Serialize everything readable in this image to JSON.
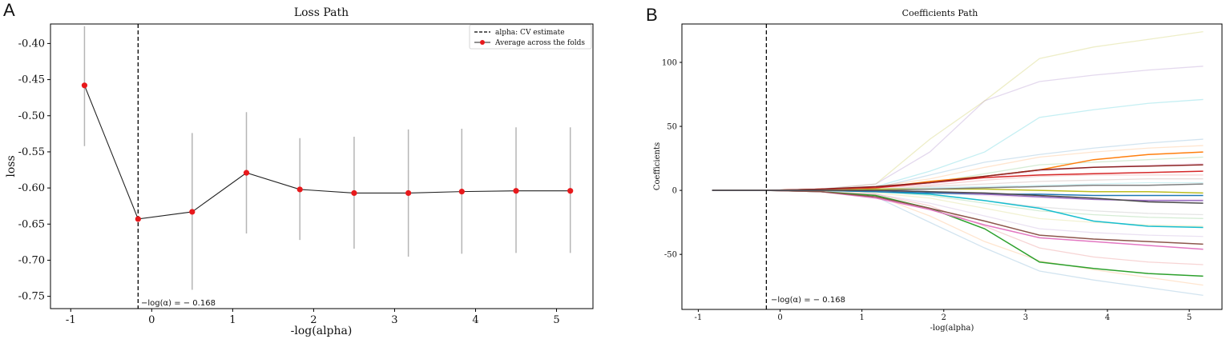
{
  "panels": [
    {
      "letter": "A"
    },
    {
      "letter": "B"
    }
  ],
  "chart_data": [
    {
      "type": "line",
      "title": "Loss Path",
      "xlabel": "-log(alpha)",
      "ylabel": "loss",
      "xlim": [
        -1.25,
        5.45
      ],
      "ylim": [
        -0.767,
        -0.373
      ],
      "xticks": [
        -1,
        0,
        1,
        2,
        3,
        4,
        5
      ],
      "xtick_labels": [
        "-1",
        "0",
        "1",
        "2",
        "3",
        "4",
        "5"
      ],
      "yticks": [
        -0.75,
        -0.7,
        -0.65,
        -0.6,
        -0.55,
        -0.5,
        -0.45,
        -0.4
      ],
      "ytick_labels": [
        "-0.75",
        "-0.70",
        "-0.65",
        "-0.60",
        "-0.55",
        "-0.50",
        "-0.45",
        "-0.40"
      ],
      "cv_estimate_x": -0.168,
      "annotation": "−log(α) = − 0.168",
      "legend": {
        "placement": "top-right",
        "entries": [
          "alpha: CV estimate",
          "Average across the folds"
        ]
      },
      "series": [
        {
          "name": "Average across the folds",
          "color": "#e8191c",
          "x": [
            -0.83,
            -0.168,
            0.5,
            1.17,
            1.83,
            2.5,
            3.17,
            3.83,
            4.5,
            5.17
          ],
          "y": [
            -0.458,
            -0.643,
            -0.633,
            -0.579,
            -0.602,
            -0.607,
            -0.607,
            -0.605,
            -0.604,
            -0.604
          ],
          "err_low": [
            -0.542,
            -0.643,
            -0.741,
            -0.663,
            -0.672,
            -0.684,
            -0.695,
            -0.691,
            -0.69,
            -0.69
          ],
          "err_high": [
            -0.376,
            -0.643,
            -0.524,
            -0.495,
            -0.531,
            -0.529,
            -0.519,
            -0.518,
            -0.516,
            -0.516
          ]
        }
      ]
    },
    {
      "type": "line",
      "title": "Coefficients Path",
      "xlabel": "-log(alpha)",
      "ylabel": "Coefficients",
      "xlim": [
        -1.2,
        5.4
      ],
      "ylim": [
        -93,
        130
      ],
      "xticks": [
        -1,
        0,
        1,
        2,
        3,
        4,
        5
      ],
      "xtick_labels": [
        "-1",
        "0",
        "1",
        "2",
        "3",
        "4",
        "5"
      ],
      "yticks": [
        -50,
        0,
        50,
        100
      ],
      "ytick_labels": [
        "-50",
        "0",
        "50",
        "100"
      ],
      "cv_estimate_x": -0.168,
      "annotation": "−log(α) = − 0.168",
      "x": [
        -0.83,
        -0.168,
        0.5,
        1.17,
        1.83,
        2.5,
        3.17,
        3.83,
        4.5,
        5.17
      ],
      "series": [
        {
          "color": "#2ca02c",
          "opacity": 1,
          "values": [
            0,
            0,
            -1,
            -4,
            -14,
            -30,
            -56,
            -61,
            -65,
            -67
          ]
        },
        {
          "color": "#e377c2",
          "opacity": 1,
          "values": [
            0,
            0,
            -1,
            -6,
            -15,
            -27,
            -37,
            -40,
            -43,
            -46
          ]
        },
        {
          "color": "#8c564b",
          "opacity": 1,
          "values": [
            0,
            0,
            -1,
            -5,
            -14,
            -24,
            -35,
            -38,
            -40,
            -42
          ]
        },
        {
          "color": "#17becf",
          "opacity": 1,
          "values": [
            0,
            0,
            0,
            -1,
            -3,
            -8,
            -14,
            -24,
            -28,
            -29
          ]
        },
        {
          "color": "#ff7f0e",
          "opacity": 1,
          "values": [
            0,
            0,
            1,
            2,
            7,
            11,
            16,
            24,
            28,
            30
          ]
        },
        {
          "color": "#d62728",
          "opacity": 1,
          "values": [
            0,
            0,
            1,
            2,
            6,
            10,
            12,
            13,
            14,
            15
          ]
        },
        {
          "color": "#8b2020",
          "opacity": 1,
          "values": [
            0,
            0,
            1,
            3,
            6,
            11,
            16,
            18,
            19,
            20
          ]
        },
        {
          "color": "#bcbd22",
          "opacity": 1,
          "values": [
            0,
            0,
            0,
            1,
            1,
            1,
            0,
            -1,
            -1,
            -2
          ]
        },
        {
          "color": "#1f77b4",
          "opacity": 1,
          "values": [
            0,
            0,
            0,
            -1,
            -2,
            -3,
            -3,
            -4,
            -4,
            -4
          ]
        },
        {
          "color": "#7f7f7f",
          "opacity": 1,
          "values": [
            0,
            0,
            0,
            0,
            1,
            2,
            3,
            4,
            4,
            5
          ]
        },
        {
          "color": "#9467bd",
          "opacity": 1,
          "values": [
            0,
            0,
            0,
            0,
            -1,
            -3,
            -5,
            -7,
            -8,
            -8
          ]
        },
        {
          "color": "#4b4b4b",
          "opacity": 1,
          "values": [
            0,
            0,
            0,
            0,
            -1,
            -2,
            -4,
            -6,
            -9,
            -10
          ]
        },
        {
          "color": "#bcbd22",
          "opacity": 0.25,
          "values": [
            0,
            0,
            1,
            5,
            40,
            70,
            103,
            112,
            118,
            124
          ]
        },
        {
          "color": "#9467bd",
          "opacity": 0.25,
          "values": [
            0,
            0,
            1,
            5,
            30,
            70,
            85,
            90,
            94,
            97
          ]
        },
        {
          "color": "#17becf",
          "opacity": 0.25,
          "values": [
            0,
            0,
            1,
            3,
            15,
            30,
            57,
            63,
            68,
            71
          ]
        },
        {
          "color": "#1f77b4",
          "opacity": 0.2,
          "values": [
            0,
            0,
            1,
            2,
            12,
            22,
            28,
            33,
            37,
            40
          ]
        },
        {
          "color": "#ff7f0e",
          "opacity": 0.2,
          "values": [
            0,
            0,
            1,
            3,
            9,
            18,
            26,
            30,
            33,
            35
          ]
        },
        {
          "color": "#2ca02c",
          "opacity": 0.2,
          "values": [
            0,
            0,
            1,
            2,
            6,
            13,
            20,
            22,
            24,
            26
          ]
        },
        {
          "color": "#e377c2",
          "opacity": 0.2,
          "values": [
            0,
            0,
            1,
            2,
            5,
            10,
            15,
            18,
            20,
            21
          ]
        },
        {
          "color": "#d62728",
          "opacity": 0.2,
          "values": [
            0,
            0,
            0,
            2,
            4,
            8,
            11,
            12,
            12,
            12
          ]
        },
        {
          "color": "#8c564b",
          "opacity": 0.2,
          "values": [
            0,
            0,
            0,
            1,
            3,
            5,
            7,
            8,
            9,
            9
          ]
        },
        {
          "color": "#7f7f7f",
          "opacity": 0.2,
          "values": [
            0,
            0,
            0,
            -1,
            -3,
            -8,
            -13,
            -16,
            -18,
            -19
          ]
        },
        {
          "color": "#bcbd22",
          "opacity": 0.2,
          "values": [
            0,
            0,
            0,
            -2,
            -6,
            -14,
            -22,
            -25,
            -27,
            -28
          ]
        },
        {
          "color": "#9467bd",
          "opacity": 0.2,
          "values": [
            0,
            0,
            -1,
            -3,
            -10,
            -20,
            -30,
            -33,
            -35,
            -36
          ]
        },
        {
          "color": "#ff7f0e",
          "opacity": 0.2,
          "values": [
            0,
            0,
            -1,
            -4,
            -20,
            -40,
            -55,
            -62,
            -68,
            -74
          ]
        },
        {
          "color": "#1f77b4",
          "opacity": 0.2,
          "values": [
            0,
            0,
            -1,
            -5,
            -25,
            -45,
            -63,
            -70,
            -76,
            -82
          ]
        },
        {
          "color": "#d62728",
          "opacity": 0.2,
          "values": [
            0,
            0,
            -1,
            -3,
            -12,
            -28,
            -45,
            -52,
            -56,
            -58
          ]
        },
        {
          "color": "#2ca02c",
          "opacity": 0.2,
          "values": [
            0,
            0,
            0,
            -1,
            -4,
            -10,
            -16,
            -19,
            -21,
            -22
          ]
        },
        {
          "color": "#17becf",
          "opacity": 0.2,
          "values": [
            0,
            0,
            0,
            1,
            2,
            3,
            4,
            5,
            6,
            6
          ]
        },
        {
          "color": "#e377c2",
          "opacity": 0.2,
          "values": [
            0,
            0,
            0,
            -1,
            -2,
            -4,
            -6,
            -7,
            -7,
            -7
          ]
        }
      ]
    }
  ]
}
